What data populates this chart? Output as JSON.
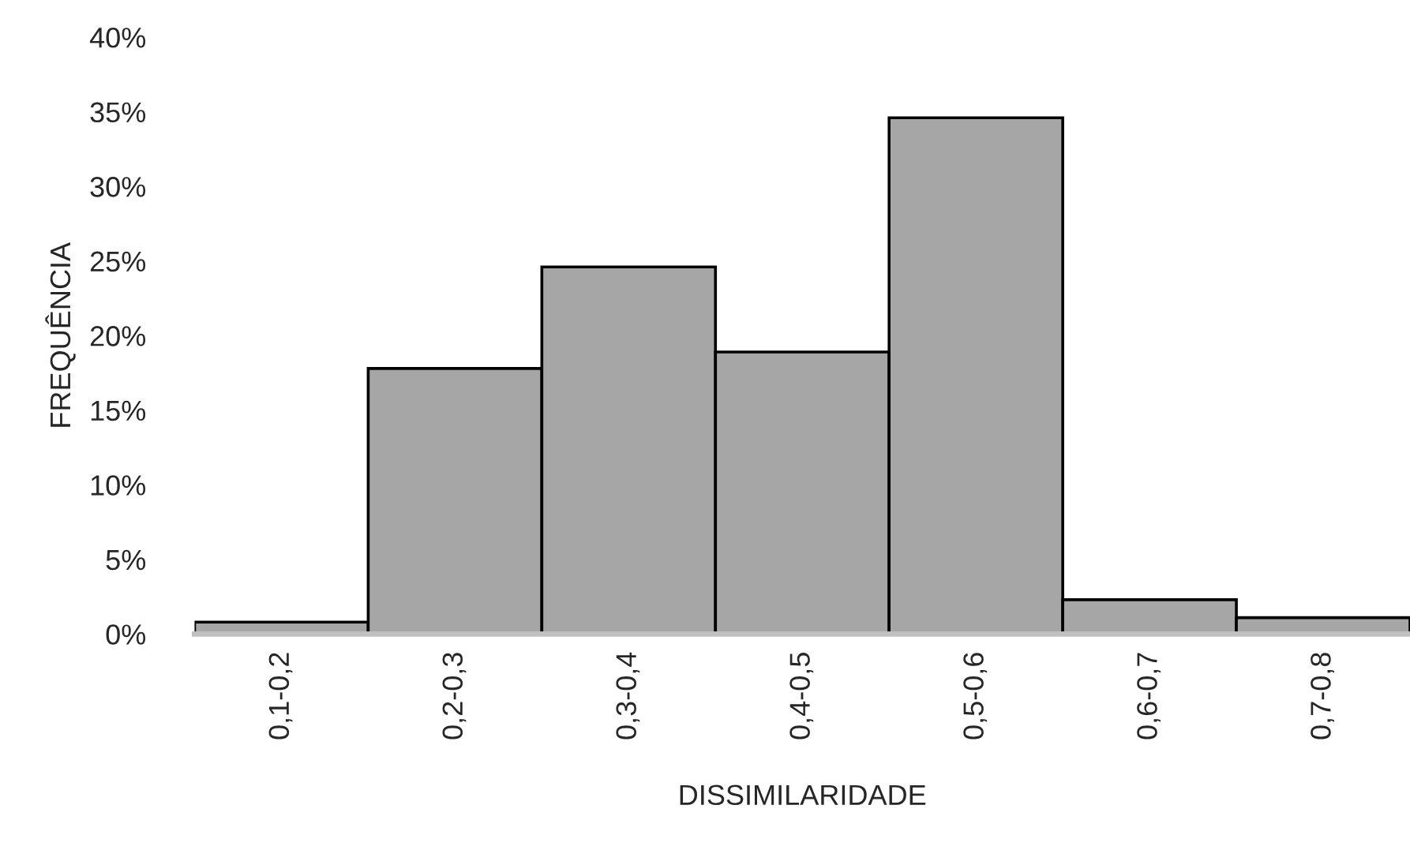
{
  "chart_data": {
    "type": "bar",
    "xlabel": "DISSIMILARIDADE",
    "ylabel": "FREQUÊNCIA",
    "categories": [
      "0,1-0,2",
      "0,2-0,3",
      "0,3-0,4",
      "0,4-0,5",
      "0,5-0,6",
      "0,6-0,7",
      "0,7-0,8"
    ],
    "values": [
      0.8,
      17.8,
      24.6,
      18.9,
      34.6,
      2.3,
      1.1
    ],
    "color": "#a6a6a6",
    "ylim": [
      0,
      40
    ],
    "yticks": [
      {
        "value": 0,
        "label": "0%"
      },
      {
        "value": 5,
        "label": "5%"
      },
      {
        "value": 10,
        "label": "10%"
      },
      {
        "value": 15,
        "label": "15%"
      },
      {
        "value": 20,
        "label": "20%"
      },
      {
        "value": 25,
        "label": "25%"
      },
      {
        "value": 30,
        "label": "30%"
      },
      {
        "value": 35,
        "label": "35%"
      },
      {
        "value": 40,
        "label": "40%"
      }
    ],
    "grid": false,
    "legend": false
  }
}
